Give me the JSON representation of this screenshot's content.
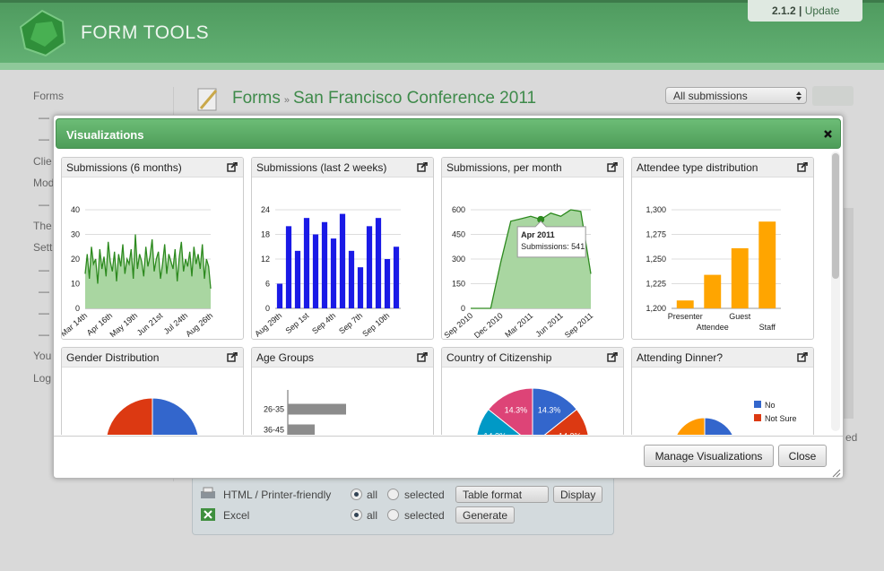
{
  "header": {
    "logo_text": "FORM TOOLS",
    "version": "2.1.2",
    "version_separator": "|",
    "update": "Update"
  },
  "sidebar": [
    "Forms",
    "—",
    "—",
    "Clie",
    "Mod",
    "—",
    "The",
    "Sett",
    "—",
    "—",
    "—",
    "—",
    "You",
    "Log"
  ],
  "breadcrumb": {
    "root": "Forms",
    "separator": "»",
    "current": "San Francisco Conference 2011"
  },
  "view_select": "All submissions",
  "status_fragment": "ed",
  "modal": {
    "title": "Visualizations",
    "buttons": [
      "Manage Visualizations",
      "Close"
    ],
    "widgets": [
      {
        "title": "Submissions (6 months)",
        "chart": {
          "type": "area",
          "color": "#2d8a1f",
          "fill": "#a9d6a1",
          "ylim": [
            0,
            40
          ],
          "yticks": [
            0,
            10,
            20,
            30,
            40
          ],
          "grid": true,
          "categories": [
            "Mar 14th",
            null,
            null,
            null,
            null,
            null,
            null,
            null,
            null,
            null,
            null,
            null,
            "Apr 16th",
            null,
            null,
            null,
            null,
            null,
            null,
            null,
            null,
            null,
            null,
            null,
            "May 19th",
            null,
            null,
            null,
            null,
            null,
            null,
            null,
            null,
            null,
            null,
            null,
            "Jun 21st",
            null,
            null,
            null,
            null,
            null,
            null,
            null,
            null,
            null,
            null,
            null,
            "Jul 24th",
            null,
            null,
            null,
            null,
            null,
            null,
            null,
            null,
            null,
            null,
            null,
            "Aug 26th"
          ],
          "values": [
            14,
            22,
            12,
            25,
            18,
            20,
            10,
            24,
            16,
            21,
            13,
            27,
            19,
            15,
            23,
            11,
            22,
            17,
            26,
            14,
            20,
            18,
            24,
            12,
            30,
            16,
            22,
            19,
            13,
            25,
            17,
            21,
            28,
            15,
            20,
            23,
            12,
            18,
            26,
            14,
            22,
            19,
            16,
            24,
            11,
            21,
            27,
            15,
            20,
            17,
            23,
            13,
            25,
            18,
            22,
            16,
            26,
            12,
            20,
            17,
            8
          ]
        }
      },
      {
        "title": "Submissions (last 2 weeks)",
        "chart": {
          "type": "bar",
          "color": "#1a1ae6",
          "ylim": [
            0,
            24
          ],
          "yticks": [
            0,
            6,
            12,
            18,
            24
          ],
          "grid": true,
          "categories": [
            "Aug 29th",
            null,
            null,
            "Sep 1st",
            null,
            null,
            "Sep 4th",
            null,
            null,
            "Sep 7th",
            null,
            null,
            "Sep 10th",
            null
          ],
          "values": [
            6,
            20,
            14,
            22,
            18,
            21,
            17,
            23,
            14,
            10,
            20,
            22,
            12,
            15
          ]
        }
      },
      {
        "title": "Submissions, per month",
        "chart": {
          "type": "area",
          "color": "#2d8a1f",
          "fill": "#a9d6a1",
          "ylim": [
            0,
            600
          ],
          "yticks": [
            0,
            150,
            300,
            450,
            600
          ],
          "grid": true,
          "categories": [
            "Sep 2010",
            null,
            null,
            "Dec 2010",
            null,
            null,
            "Mar 2011",
            null,
            null,
            "Jun 2011",
            null,
            null,
            "Sep 2011"
          ],
          "values": [
            0,
            0,
            0,
            280,
            530,
            545,
            560,
            541,
            580,
            560,
            600,
            590,
            210
          ],
          "tooltip": {
            "index": 7,
            "title": "Apr 2011",
            "text": "Submissions: 541"
          }
        }
      },
      {
        "title": "Attendee type distribution",
        "chart": {
          "type": "bar",
          "color": "#ffa500",
          "ylim": [
            1200,
            1300
          ],
          "yticks": [
            {
              "value": 1200,
              "label": "1,200"
            },
            {
              "value": 1225,
              "label": "1,225"
            },
            {
              "value": 1250,
              "label": "1,250"
            },
            {
              "value": 1275,
              "label": "1,275"
            },
            {
              "value": 1300,
              "label": "1,300"
            }
          ],
          "grid": true,
          "categories": [
            "Presenter",
            "Attendee",
            "Guest",
            "Staff"
          ],
          "values": [
            1208,
            1234,
            1261,
            1288
          ]
        }
      },
      {
        "title": "Gender Distribution",
        "chart": {
          "type": "pie",
          "colors": [
            "#3366cc",
            "#dc3912"
          ],
          "values": [
            50,
            50
          ]
        }
      },
      {
        "title": "Age Groups",
        "chart": {
          "type": "hbar",
          "color": "#8c8c8c",
          "xlim": [
            0,
            200
          ],
          "categories": [
            "26-35",
            "36-45"
          ],
          "values": [
            104,
            48
          ]
        }
      },
      {
        "title": "Country of Citizenship",
        "chart": {
          "type": "pie",
          "colors": [
            "#3366cc",
            "#dc3912",
            "#ff9900",
            "#109618",
            "#990099",
            "#0099c6",
            "#dd4477"
          ],
          "values": [
            14.3,
            14.3,
            14.3,
            14.3,
            14.3,
            14.3,
            14.3
          ],
          "value_labels": [
            "14.3%",
            "14.3%",
            "14.3%",
            "14.3%",
            "14.3%",
            "14.3%",
            "14.3%"
          ]
        }
      },
      {
        "title": "Attending Dinner?",
        "chart": {
          "type": "pie",
          "colors": [
            "#3366cc",
            "#dc3912",
            "#ff9900"
          ],
          "categories": [
            "No",
            "Not Sure",
            null
          ],
          "values": [
            30,
            25,
            45
          ]
        }
      }
    ]
  },
  "export": [
    {
      "label": "HTML / Printer-friendly",
      "all": "all",
      "selected": "selected",
      "format": "Table format",
      "button": "Display"
    },
    {
      "label": "Excel",
      "all": "all",
      "selected": "selected",
      "button": "Generate"
    }
  ]
}
